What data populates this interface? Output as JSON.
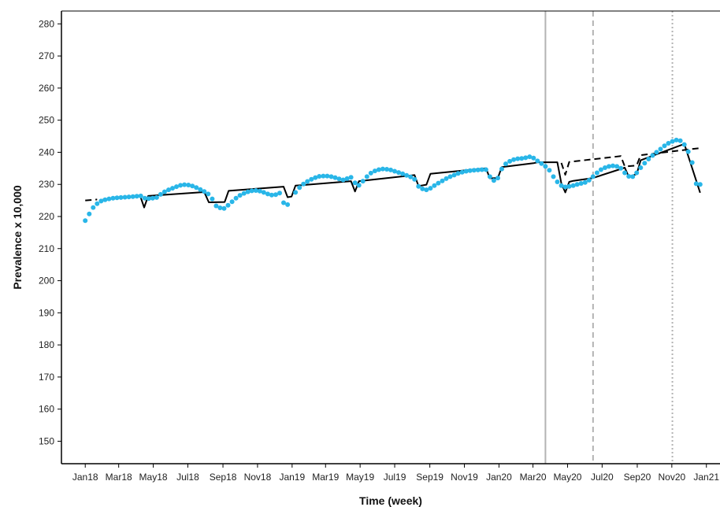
{
  "chart_data": {
    "type": "scatter",
    "title": "",
    "xlabel": "Time (week)",
    "ylabel": "Prevalence x 10,000",
    "xlim": [
      "2017-11-20",
      "2021-01-25"
    ],
    "ylim": [
      143,
      284
    ],
    "x_ticks": [
      {
        "date": "2018-01-01",
        "label": "Jan18"
      },
      {
        "date": "2018-03-01",
        "label": "Mar18"
      },
      {
        "date": "2018-05-01",
        "label": "May18"
      },
      {
        "date": "2018-07-01",
        "label": "Jul18"
      },
      {
        "date": "2018-09-01",
        "label": "Sep18"
      },
      {
        "date": "2018-11-01",
        "label": "Nov18"
      },
      {
        "date": "2019-01-01",
        "label": "Jan19"
      },
      {
        "date": "2019-03-01",
        "label": "Mar19"
      },
      {
        "date": "2019-05-01",
        "label": "May19"
      },
      {
        "date": "2019-07-01",
        "label": "Jul19"
      },
      {
        "date": "2019-09-01",
        "label": "Sep19"
      },
      {
        "date": "2019-11-01",
        "label": "Nov19"
      },
      {
        "date": "2020-01-01",
        "label": "Jan20"
      },
      {
        "date": "2020-03-01",
        "label": "Mar20"
      },
      {
        "date": "2020-05-01",
        "label": "May20"
      },
      {
        "date": "2020-07-01",
        "label": "Jul20"
      },
      {
        "date": "2020-09-01",
        "label": "Sep20"
      },
      {
        "date": "2020-11-01",
        "label": "Nov20"
      },
      {
        "date": "2021-01-01",
        "label": "Jan21"
      }
    ],
    "y_ticks": [
      150,
      160,
      170,
      180,
      190,
      200,
      210,
      220,
      230,
      240,
      250,
      260,
      270,
      280
    ],
    "grid": false,
    "legend": "none",
    "vlines": [
      {
        "date": "2020-03-23",
        "style": "solid",
        "color": "#b3b3b3"
      },
      {
        "date": "2020-06-15",
        "style": "dashed",
        "color": "#b3b3b3"
      },
      {
        "date": "2020-11-02",
        "style": "dotted",
        "color": "#b3b3b3"
      }
    ],
    "series": [
      {
        "kind": "points",
        "color": "#29b6e8",
        "points": [
          [
            "2018-01-01",
            218.7
          ],
          [
            "2018-01-08",
            220.8
          ],
          [
            "2018-01-15",
            222.8
          ],
          [
            "2018-01-22",
            224.0
          ],
          [
            "2018-01-29",
            224.8
          ],
          [
            "2018-02-05",
            225.2
          ],
          [
            "2018-02-12",
            225.5
          ],
          [
            "2018-02-19",
            225.7
          ],
          [
            "2018-02-26",
            225.8
          ],
          [
            "2018-03-05",
            225.9
          ],
          [
            "2018-03-12",
            226.0
          ],
          [
            "2018-03-19",
            226.1
          ],
          [
            "2018-03-26",
            226.2
          ],
          [
            "2018-04-02",
            226.3
          ],
          [
            "2018-04-09",
            226.4
          ],
          [
            "2018-04-16",
            225.7
          ],
          [
            "2018-04-23",
            225.6
          ],
          [
            "2018-04-30",
            225.7
          ],
          [
            "2018-05-07",
            225.9
          ],
          [
            "2018-05-14",
            226.9
          ],
          [
            "2018-05-21",
            227.7
          ],
          [
            "2018-05-28",
            228.3
          ],
          [
            "2018-06-04",
            228.8
          ],
          [
            "2018-06-11",
            229.3
          ],
          [
            "2018-06-18",
            229.7
          ],
          [
            "2018-06-25",
            229.9
          ],
          [
            "2018-07-02",
            229.8
          ],
          [
            "2018-07-09",
            229.5
          ],
          [
            "2018-07-16",
            229.0
          ],
          [
            "2018-07-23",
            228.4
          ],
          [
            "2018-07-30",
            227.8
          ],
          [
            "2018-08-06",
            227.0
          ],
          [
            "2018-08-13",
            225.5
          ],
          [
            "2018-08-20",
            223.3
          ],
          [
            "2018-08-27",
            222.7
          ],
          [
            "2018-09-03",
            222.5
          ],
          [
            "2018-09-10",
            223.5
          ],
          [
            "2018-09-17",
            224.6
          ],
          [
            "2018-09-24",
            225.7
          ],
          [
            "2018-10-01",
            226.6
          ],
          [
            "2018-10-08",
            227.2
          ],
          [
            "2018-10-15",
            227.7
          ],
          [
            "2018-10-22",
            228.0
          ],
          [
            "2018-10-29",
            228.1
          ],
          [
            "2018-11-05",
            227.9
          ],
          [
            "2018-11-12",
            227.5
          ],
          [
            "2018-11-19",
            227.0
          ],
          [
            "2018-11-26",
            226.7
          ],
          [
            "2018-12-03",
            226.8
          ],
          [
            "2018-12-10",
            227.3
          ],
          [
            "2018-12-17",
            224.3
          ],
          [
            "2018-12-24",
            223.7
          ],
          [
            "2019-01-07",
            227.5
          ],
          [
            "2019-01-14",
            229.0
          ],
          [
            "2019-01-21",
            230.1
          ],
          [
            "2019-01-28",
            230.9
          ],
          [
            "2019-02-04",
            231.6
          ],
          [
            "2019-02-11",
            232.1
          ],
          [
            "2019-02-18",
            232.5
          ],
          [
            "2019-02-25",
            232.6
          ],
          [
            "2019-03-04",
            232.6
          ],
          [
            "2019-03-11",
            232.4
          ],
          [
            "2019-03-18",
            232.1
          ],
          [
            "2019-03-25",
            231.7
          ],
          [
            "2019-04-01",
            231.4
          ],
          [
            "2019-04-08",
            231.8
          ],
          [
            "2019-04-15",
            232.2
          ],
          [
            "2019-04-22",
            230.5
          ],
          [
            "2019-04-29",
            229.7
          ],
          [
            "2019-05-06",
            231.0
          ],
          [
            "2019-05-13",
            232.4
          ],
          [
            "2019-05-20",
            233.5
          ],
          [
            "2019-05-27",
            234.2
          ],
          [
            "2019-06-03",
            234.6
          ],
          [
            "2019-06-10",
            234.8
          ],
          [
            "2019-06-17",
            234.7
          ],
          [
            "2019-06-24",
            234.5
          ],
          [
            "2019-07-01",
            234.1
          ],
          [
            "2019-07-08",
            233.7
          ],
          [
            "2019-07-15",
            233.3
          ],
          [
            "2019-07-22",
            232.8
          ],
          [
            "2019-07-29",
            232.3
          ],
          [
            "2019-08-05",
            231.6
          ],
          [
            "2019-08-12",
            229.4
          ],
          [
            "2019-08-19",
            228.6
          ],
          [
            "2019-08-26",
            228.3
          ],
          [
            "2019-09-02",
            228.8
          ],
          [
            "2019-09-09",
            229.6
          ],
          [
            "2019-09-16",
            230.4
          ],
          [
            "2019-09-23",
            231.1
          ],
          [
            "2019-09-30",
            231.8
          ],
          [
            "2019-10-07",
            232.4
          ],
          [
            "2019-10-14",
            232.9
          ],
          [
            "2019-10-21",
            233.4
          ],
          [
            "2019-10-28",
            233.8
          ],
          [
            "2019-11-04",
            234.1
          ],
          [
            "2019-11-11",
            234.3
          ],
          [
            "2019-11-18",
            234.4
          ],
          [
            "2019-11-25",
            234.5
          ],
          [
            "2019-12-02",
            234.6
          ],
          [
            "2019-12-09",
            234.6
          ],
          [
            "2019-12-16",
            232.4
          ],
          [
            "2019-12-23",
            231.2
          ],
          [
            "2019-12-30",
            232.0
          ],
          [
            "2020-01-06",
            234.8
          ],
          [
            "2020-01-13",
            236.4
          ],
          [
            "2020-01-20",
            237.2
          ],
          [
            "2020-01-27",
            237.7
          ],
          [
            "2020-02-03",
            238.0
          ],
          [
            "2020-02-10",
            238.1
          ],
          [
            "2020-02-17",
            238.3
          ],
          [
            "2020-02-24",
            238.6
          ],
          [
            "2020-03-02",
            238.2
          ],
          [
            "2020-03-09",
            237.3
          ],
          [
            "2020-03-16",
            236.5
          ],
          [
            "2020-03-23",
            235.6
          ],
          [
            "2020-03-30",
            234.4
          ],
          [
            "2020-04-06",
            232.4
          ],
          [
            "2020-04-13",
            230.8
          ],
          [
            "2020-04-20",
            229.6
          ],
          [
            "2020-04-27",
            229.2
          ],
          [
            "2020-05-04",
            229.4
          ],
          [
            "2020-05-11",
            229.6
          ],
          [
            "2020-05-18",
            230.0
          ],
          [
            "2020-05-25",
            230.3
          ],
          [
            "2020-06-01",
            230.6
          ],
          [
            "2020-06-08",
            231.3
          ],
          [
            "2020-06-15",
            232.4
          ],
          [
            "2020-06-22",
            233.6
          ],
          [
            "2020-06-29",
            234.6
          ],
          [
            "2020-07-06",
            235.2
          ],
          [
            "2020-07-13",
            235.6
          ],
          [
            "2020-07-20",
            235.8
          ],
          [
            "2020-07-27",
            235.6
          ],
          [
            "2020-08-03",
            235.0
          ],
          [
            "2020-08-10",
            233.6
          ],
          [
            "2020-08-17",
            232.5
          ],
          [
            "2020-08-24",
            232.4
          ],
          [
            "2020-08-31",
            233.6
          ],
          [
            "2020-09-07",
            235.2
          ],
          [
            "2020-09-14",
            236.6
          ],
          [
            "2020-09-21",
            237.9
          ],
          [
            "2020-09-28",
            239.0
          ],
          [
            "2020-10-05",
            240.0
          ],
          [
            "2020-10-12",
            241.0
          ],
          [
            "2020-10-19",
            242.0
          ],
          [
            "2020-10-26",
            242.8
          ],
          [
            "2020-11-02",
            243.4
          ],
          [
            "2020-11-09",
            243.8
          ],
          [
            "2020-11-16",
            243.6
          ],
          [
            "2020-11-23",
            242.4
          ],
          [
            "2020-11-30",
            240.2
          ],
          [
            "2020-12-07",
            236.8
          ],
          [
            "2020-12-14",
            230.2
          ],
          [
            "2020-12-21",
            230.0
          ]
        ]
      },
      {
        "kind": "line",
        "style": "solid",
        "color": "#000000",
        "segments": [
          [
            [
              "2018-02-01",
              225.3
            ],
            [
              "2018-04-08",
              226.4
            ],
            [
              "2018-04-15",
              222.8
            ],
            [
              "2018-04-22",
              226.4
            ],
            [
              "2018-07-30",
              227.6
            ],
            [
              "2018-08-07",
              224.4
            ],
            [
              "2018-09-04",
              224.5
            ],
            [
              "2018-09-11",
              228.0
            ],
            [
              "2018-12-17",
              229.3
            ],
            [
              "2018-12-24",
              226.0
            ],
            [
              "2018-12-31",
              226.2
            ],
            [
              "2019-01-07",
              229.6
            ],
            [
              "2019-04-15",
              231.0
            ],
            [
              "2019-04-22",
              227.8
            ],
            [
              "2019-04-29",
              231.0
            ],
            [
              "2019-08-05",
              232.9
            ],
            [
              "2019-08-12",
              229.5
            ],
            [
              "2019-08-26",
              229.9
            ],
            [
              "2019-09-02",
              233.3
            ],
            [
              "2019-12-09",
              235.0
            ],
            [
              "2019-12-16",
              231.9
            ],
            [
              "2019-12-30",
              232.0
            ],
            [
              "2020-01-06",
              235.4
            ],
            [
              "2020-03-02",
              236.6
            ],
            [
              "2020-03-09",
              236.9
            ],
            [
              "2020-04-13",
              236.9
            ],
            [
              "2020-04-20",
              230.3
            ],
            [
              "2020-04-27",
              227.5
            ],
            [
              "2020-05-04",
              230.8
            ],
            [
              "2020-05-11",
              231.1
            ],
            [
              "2020-06-15",
              232.0
            ],
            [
              "2020-08-10",
              235.2
            ],
            [
              "2020-08-17",
              232.4
            ],
            [
              "2020-08-31",
              233.2
            ],
            [
              "2020-09-07",
              237.5
            ],
            [
              "2020-11-23",
              242.6
            ],
            [
              "2020-12-21",
              227.4
            ]
          ]
        ]
      },
      {
        "kind": "line",
        "style": "dashed",
        "color": "#000000",
        "segments": [
          [
            [
              "2018-01-01",
              225.0
            ],
            [
              "2018-01-22",
              225.3
            ]
          ],
          [
            [
              "2020-04-20",
              236.7
            ],
            [
              "2020-04-27",
              233.0
            ],
            [
              "2020-05-04",
              237.0
            ],
            [
              "2020-08-03",
              238.8
            ],
            [
              "2020-08-10",
              235.6
            ],
            [
              "2020-08-31",
              235.9
            ],
            [
              "2020-09-07",
              239.1
            ],
            [
              "2020-12-21",
              241.3
            ]
          ]
        ]
      }
    ]
  }
}
